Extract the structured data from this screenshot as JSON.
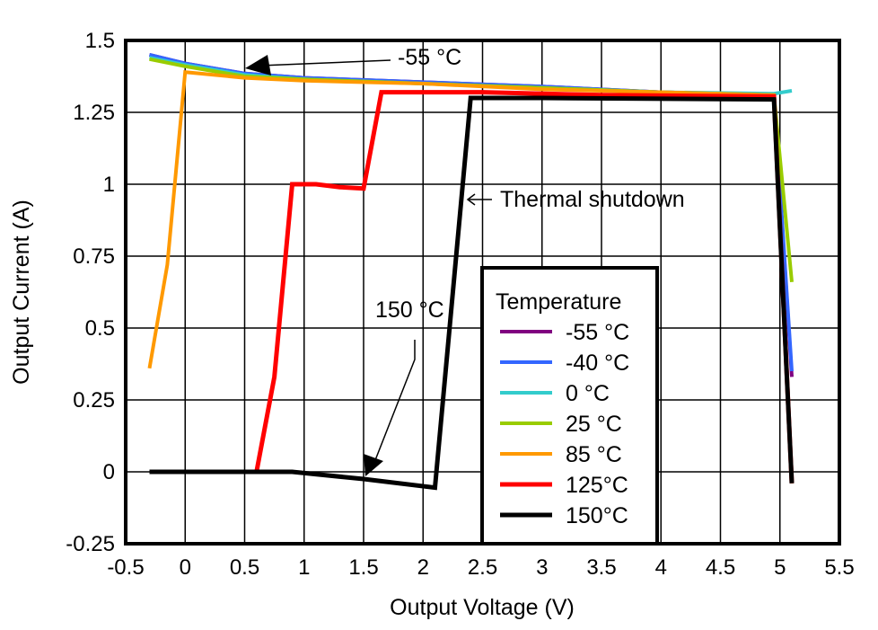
{
  "chart_data": {
    "type": "line",
    "title": "",
    "xlabel": "Output Voltage (V)",
    "ylabel": "Output Current (A)",
    "xlim": [
      -0.5,
      5.5
    ],
    "ylim": [
      -0.25,
      1.5
    ],
    "xticks": [
      -0.5,
      0,
      0.5,
      1,
      1.5,
      2,
      2.5,
      3,
      3.5,
      4,
      4.5,
      5,
      5.5
    ],
    "xtick_labels": [
      "-0.5",
      "0",
      "0.5",
      "1",
      "1.5",
      "2",
      "2.5",
      "3",
      "3.5",
      "4",
      "4.5",
      "5",
      "5.5"
    ],
    "yticks": [
      -0.25,
      0,
      0.25,
      0.5,
      0.75,
      1,
      1.25,
      1.5
    ],
    "ytick_labels": [
      "-0.25",
      "0",
      "0.25",
      "0.5",
      "0.75",
      "1",
      "1.25",
      "1.5"
    ],
    "grid": true,
    "legend": {
      "title": "Temperature",
      "placement": "bottom-center"
    },
    "series": [
      {
        "name": "-55 °C",
        "color": "#800080",
        "points": [
          [
            -0.3,
            1.45
          ],
          [
            0,
            1.42
          ],
          [
            0.5,
            1.385
          ],
          [
            1,
            1.37
          ],
          [
            2,
            1.355
          ],
          [
            3,
            1.34
          ],
          [
            4,
            1.32
          ],
          [
            4.95,
            1.31
          ],
          [
            5.1,
            0.33
          ]
        ]
      },
      {
        "name": "-40 °C",
        "color": "#3366ff",
        "points": [
          [
            -0.3,
            1.45
          ],
          [
            0,
            1.42
          ],
          [
            0.5,
            1.385
          ],
          [
            1,
            1.37
          ],
          [
            2,
            1.355
          ],
          [
            3,
            1.34
          ],
          [
            4,
            1.32
          ],
          [
            4.95,
            1.31
          ],
          [
            5.1,
            0.35
          ]
        ]
      },
      {
        "name": "0 °C",
        "color": "#33cccc",
        "points": [
          [
            -0.3,
            1.44
          ],
          [
            0,
            1.415
          ],
          [
            0.5,
            1.38
          ],
          [
            1,
            1.365
          ],
          [
            2,
            1.35
          ],
          [
            3,
            1.335
          ],
          [
            4,
            1.32
          ],
          [
            4.95,
            1.315
          ],
          [
            5.1,
            1.325
          ]
        ]
      },
      {
        "name": "25 °C",
        "color": "#99cc00",
        "points": [
          [
            -0.3,
            1.435
          ],
          [
            0,
            1.41
          ],
          [
            0.5,
            1.375
          ],
          [
            1,
            1.365
          ],
          [
            2,
            1.35
          ],
          [
            3,
            1.335
          ],
          [
            4,
            1.32
          ],
          [
            4.95,
            1.31
          ],
          [
            5.1,
            0.66
          ]
        ]
      },
      {
        "name": "85 °C",
        "color": "#ff9900",
        "points": [
          [
            -0.3,
            0.36
          ],
          [
            -0.15,
            0.72
          ],
          [
            0,
            1.39
          ],
          [
            0.5,
            1.37
          ],
          [
            1,
            1.36
          ],
          [
            2,
            1.35
          ],
          [
            3,
            1.33
          ],
          [
            4,
            1.32
          ],
          [
            4.95,
            1.31
          ],
          [
            5.1,
            -0.04
          ]
        ]
      },
      {
        "name": "125°C",
        "color": "#ff0000",
        "points": [
          [
            0.6,
            0
          ],
          [
            0.75,
            0.33
          ],
          [
            0.9,
            1.0
          ],
          [
            1.1,
            1.0
          ],
          [
            1.3,
            0.99
          ],
          [
            1.5,
            0.985
          ],
          [
            1.65,
            1.32
          ],
          [
            2.5,
            1.32
          ],
          [
            3.5,
            1.31
          ],
          [
            4.95,
            1.305
          ],
          [
            5.1,
            -0.04
          ]
        ]
      },
      {
        "name": "150°C",
        "color": "#000000",
        "points": [
          [
            -0.3,
            0
          ],
          [
            0.9,
            0
          ],
          [
            1.5,
            -0.025
          ],
          [
            2.1,
            -0.055
          ],
          [
            2.4,
            1.3
          ],
          [
            3,
            1.3
          ],
          [
            4.95,
            1.295
          ],
          [
            5.1,
            -0.04
          ]
        ]
      }
    ],
    "annotations": [
      {
        "text": "-55 °C",
        "target": [
          0.5,
          1.385
        ]
      },
      {
        "text": "Thermal shutdown",
        "target": [
          2.4,
          0.95
        ]
      },
      {
        "text": "150 °C",
        "target": [
          1.5,
          -0.01
        ]
      }
    ]
  }
}
